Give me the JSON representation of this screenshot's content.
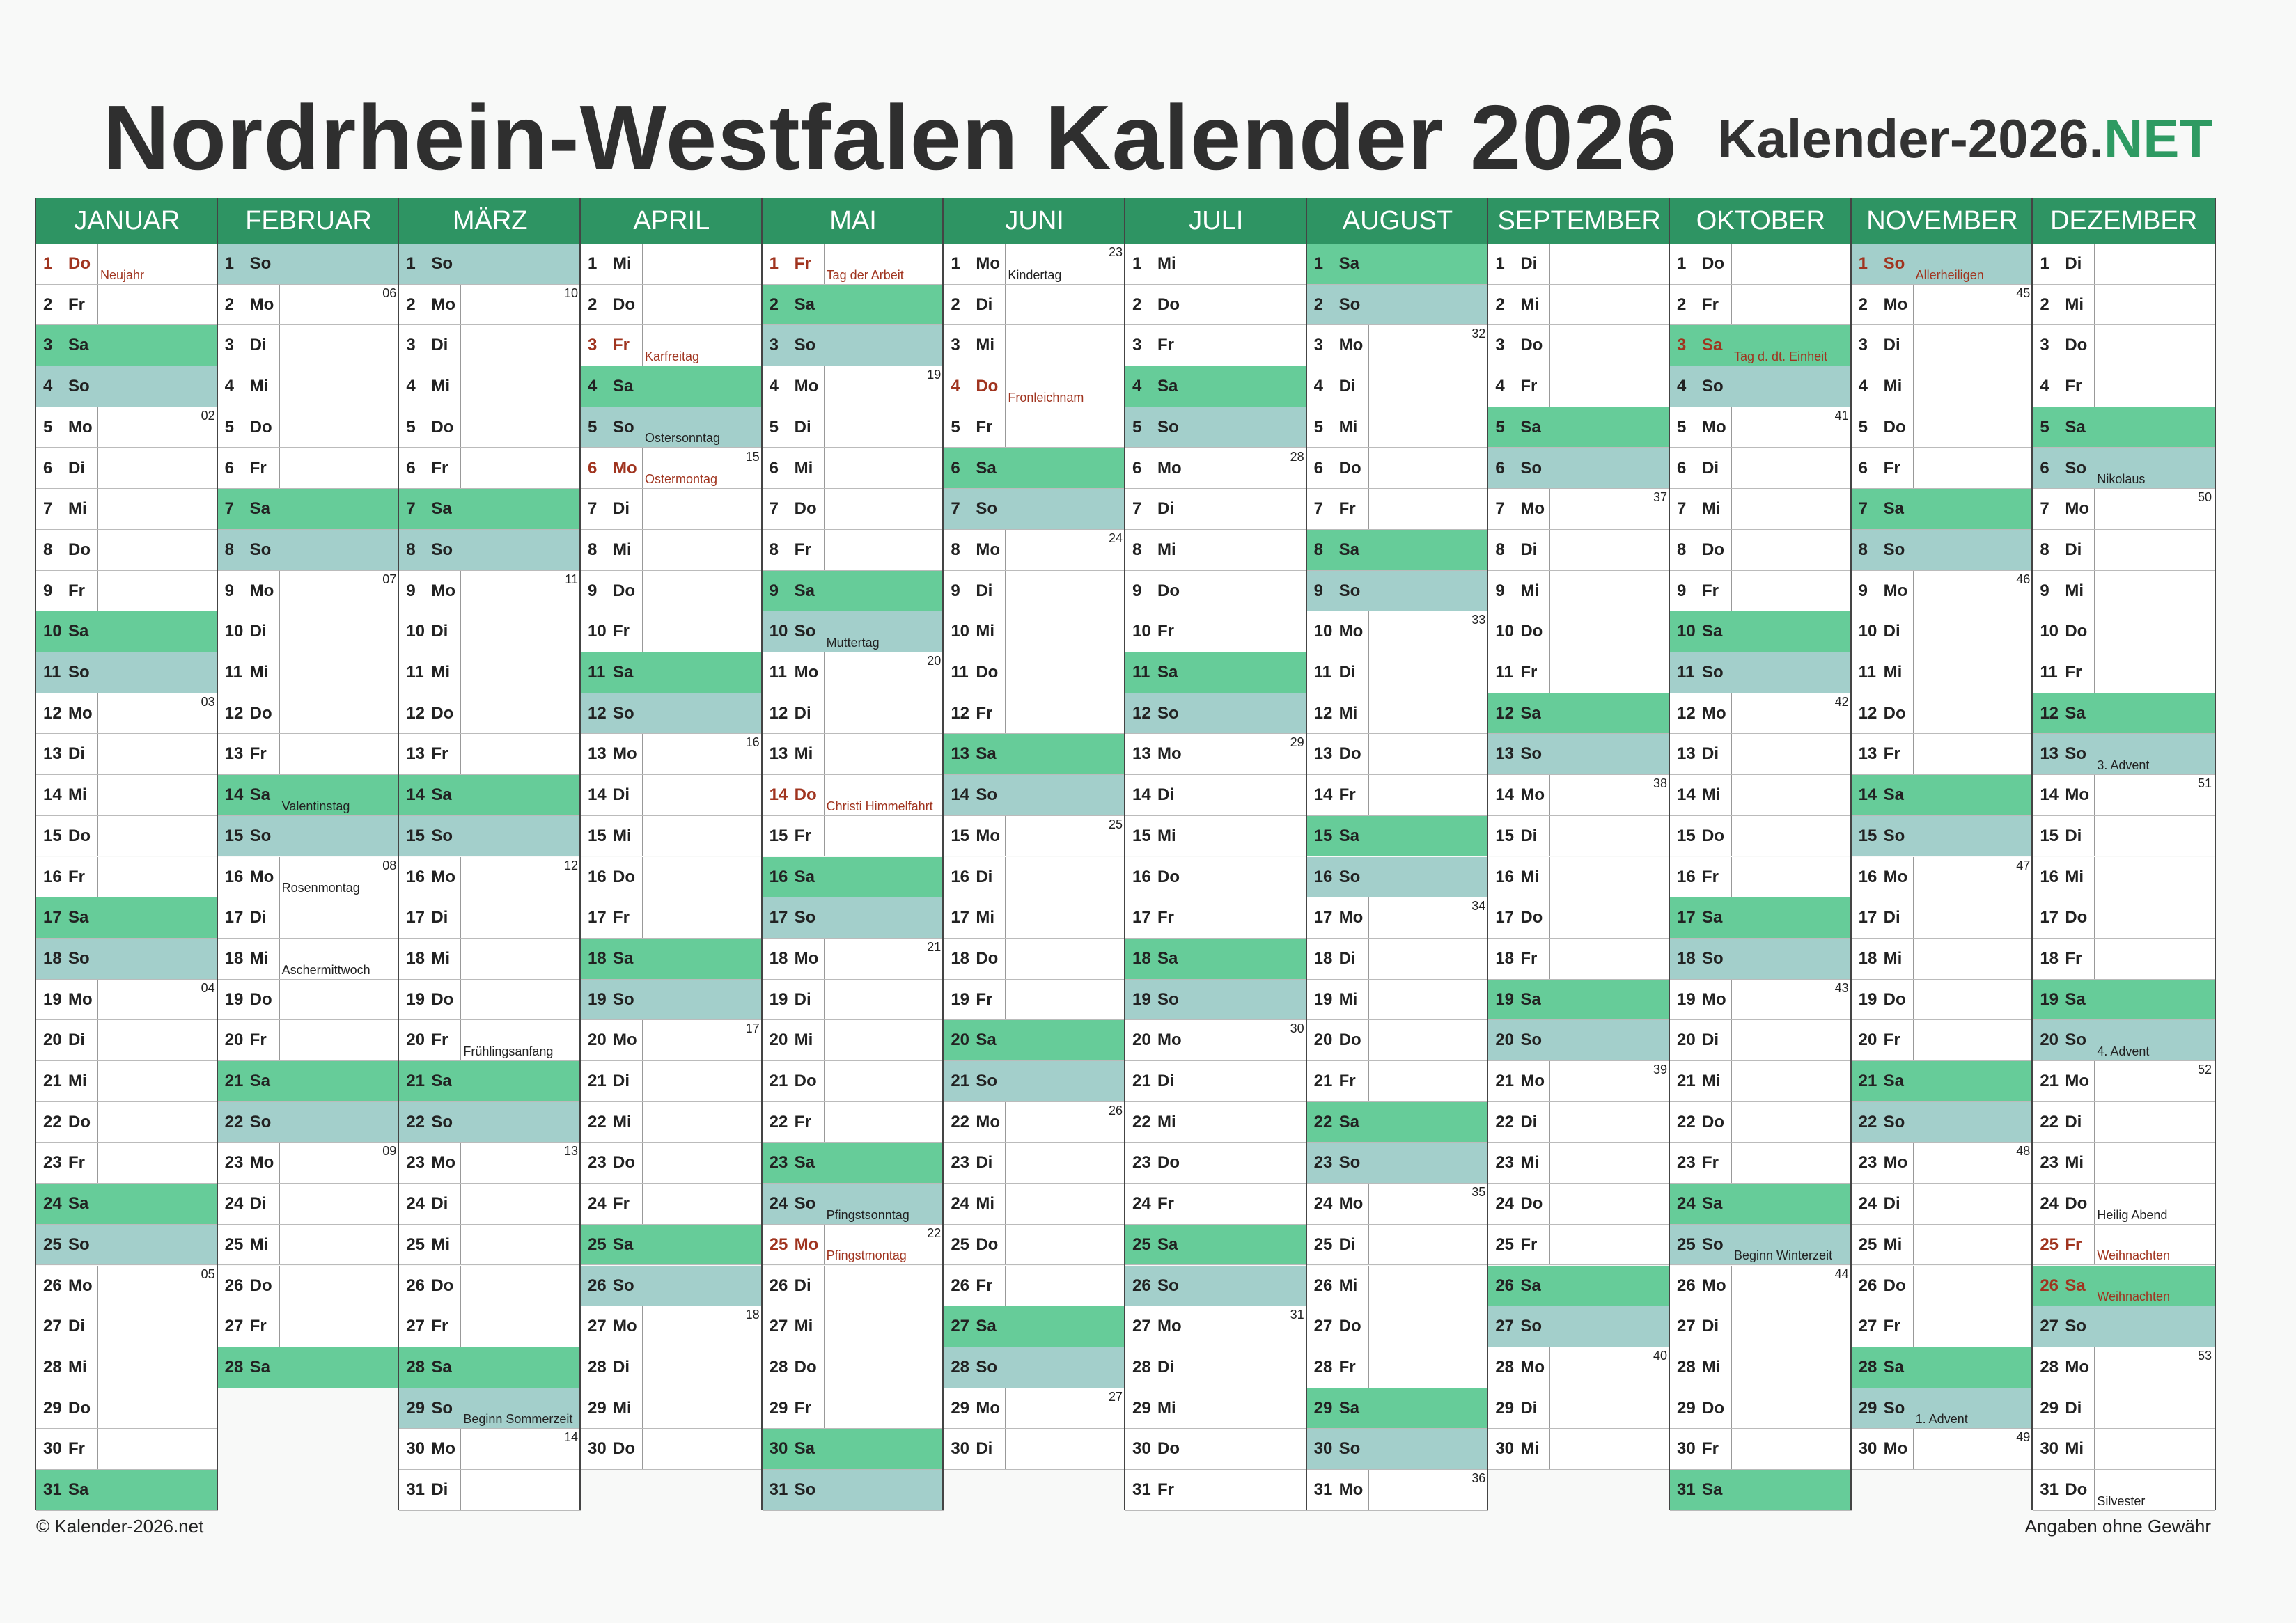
{
  "title": "Nordrhein-Westfalen Kalender 2026",
  "brand": {
    "main": "Kalender-2026.",
    "accent": "NET"
  },
  "colors": {
    "header": "#2e9463",
    "saturday": "#66cc99",
    "sunday": "#a3cfcb",
    "holiday": "#a0341f",
    "brand_accent": "#2e9a62"
  },
  "year": 2026,
  "weekday_abbr": [
    "Mo",
    "Di",
    "Mi",
    "Do",
    "Fr",
    "Sa",
    "So"
  ],
  "months": [
    "JANUAR",
    "FEBRUAR",
    "MÄRZ",
    "APRIL",
    "MAI",
    "JUNI",
    "JULI",
    "AUGUST",
    "SEPTEMBER",
    "OKTOBER",
    "NOVEMBER",
    "DEZEMBER"
  ],
  "notes": [
    {
      "m": 1,
      "d": 1,
      "text": "Neujahr",
      "holiday": true
    },
    {
      "m": 2,
      "d": 14,
      "text": "Valentinstag",
      "holiday": false
    },
    {
      "m": 2,
      "d": 16,
      "text": "Rosenmontag",
      "holiday": false
    },
    {
      "m": 2,
      "d": 18,
      "text": "Aschermittwoch",
      "holiday": false
    },
    {
      "m": 3,
      "d": 20,
      "text": "Frühlingsanfang",
      "holiday": false
    },
    {
      "m": 3,
      "d": 29,
      "text": "Beginn Sommerzeit",
      "holiday": false
    },
    {
      "m": 4,
      "d": 3,
      "text": "Karfreitag",
      "holiday": true
    },
    {
      "m": 4,
      "d": 5,
      "text": "Ostersonntag",
      "holiday": false
    },
    {
      "m": 4,
      "d": 6,
      "text": "Ostermontag",
      "holiday": true
    },
    {
      "m": 5,
      "d": 1,
      "text": "Tag der Arbeit",
      "holiday": true
    },
    {
      "m": 5,
      "d": 10,
      "text": "Muttertag",
      "holiday": false
    },
    {
      "m": 5,
      "d": 14,
      "text": "Christi Himmelfahrt",
      "holiday": true
    },
    {
      "m": 5,
      "d": 24,
      "text": "Pfingstsonntag",
      "holiday": false
    },
    {
      "m": 5,
      "d": 25,
      "text": "Pfingstmontag",
      "holiday": true
    },
    {
      "m": 6,
      "d": 1,
      "text": "Kindertag",
      "holiday": false
    },
    {
      "m": 6,
      "d": 4,
      "text": "Fronleichnam",
      "holiday": true
    },
    {
      "m": 10,
      "d": 3,
      "text": "Tag d. dt. Einheit",
      "holiday": true
    },
    {
      "m": 10,
      "d": 25,
      "text": "Beginn Winterzeit",
      "holiday": false
    },
    {
      "m": 11,
      "d": 1,
      "text": "Allerheiligen",
      "holiday": true
    },
    {
      "m": 11,
      "d": 29,
      "text": "1. Advent",
      "holiday": false
    },
    {
      "m": 12,
      "d": 6,
      "text": "Nikolaus",
      "holiday": false
    },
    {
      "m": 12,
      "d": 13,
      "text": "3. Advent",
      "holiday": false
    },
    {
      "m": 12,
      "d": 20,
      "text": "4. Advent",
      "holiday": false
    },
    {
      "m": 12,
      "d": 24,
      "text": "Heilig Abend",
      "holiday": false
    },
    {
      "m": 12,
      "d": 25,
      "text": "Weihnachten",
      "holiday": true
    },
    {
      "m": 12,
      "d": 26,
      "text": "Weihnachten",
      "holiday": true
    },
    {
      "m": 12,
      "d": 31,
      "text": "Silvester",
      "holiday": false
    }
  ],
  "footer": {
    "left": "© Kalender-2026.net",
    "right": "Angaben ohne Gewähr"
  }
}
